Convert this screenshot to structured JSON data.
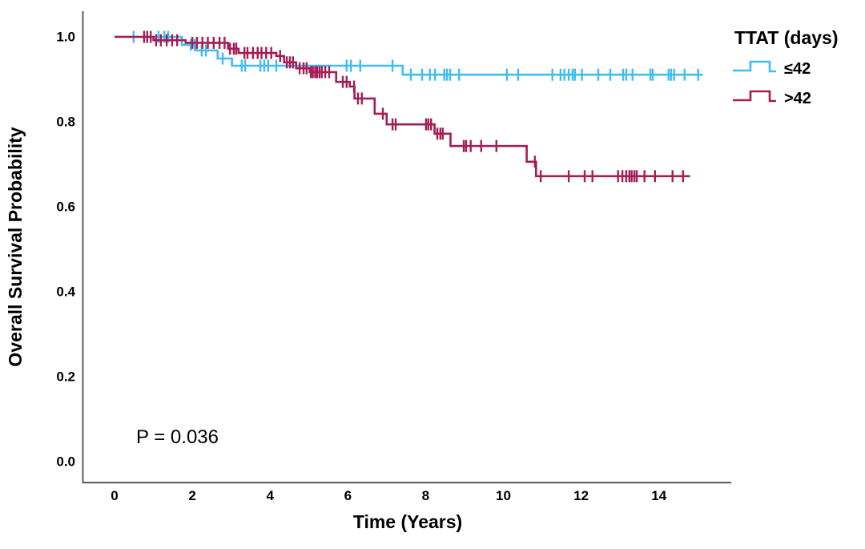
{
  "figure": {
    "background": "#ffffff",
    "axis_color": "#4c4c4c"
  },
  "legend": {
    "title": "TTAT (days)",
    "items": [
      {
        "id": "le42",
        "label": "≤42",
        "color": "#3fbdf2"
      },
      {
        "id": "gt42",
        "label": ">42",
        "color": "#a51d54"
      }
    ]
  },
  "chart_data": {
    "type": "line",
    "subtype": "kaplan_meier_step_survival",
    "title": "",
    "xlabel": "Time (Years)",
    "ylabel": "Overall Survival Probability",
    "x_ticks": [
      0,
      2,
      4,
      6,
      8,
      10,
      12,
      14
    ],
    "x_tick_labels": [
      "0",
      "2",
      "4",
      "6",
      "8",
      "10",
      "12",
      "14"
    ],
    "y_ticks": [
      0.0,
      0.2,
      0.4,
      0.6,
      0.8,
      1.0
    ],
    "y_tick_labels_top_down": [
      "1.0",
      "0.8",
      "0.6",
      "0.4",
      "0.2",
      "0.0"
    ],
    "xlim": [
      -0.8,
      15.9
    ],
    "ylim": [
      -0.05,
      1.06
    ],
    "grid": false,
    "legend_position": "top-right",
    "annotation": {
      "text": "P = 0.036",
      "x_year": 0.56,
      "y_prob": 0.04
    },
    "series": [
      {
        "id": "le42",
        "name": "≤42",
        "color": "#3fbdf2",
        "steps": [
          [
            0,
            1.0
          ],
          [
            1.73,
            0.981
          ],
          [
            2.1,
            0.968
          ],
          [
            2.65,
            0.949
          ],
          [
            3.02,
            0.932
          ],
          [
            7.41,
            0.911
          ],
          [
            15.13,
            0.911
          ]
        ],
        "censors": [
          [
            0.49,
            1.0
          ],
          [
            1.13,
            1.0
          ],
          [
            1.28,
            1.0
          ],
          [
            1.38,
            1.0
          ],
          [
            1.96,
            0.981
          ],
          [
            2.06,
            0.981
          ],
          [
            2.24,
            0.968
          ],
          [
            2.35,
            0.968
          ],
          [
            2.78,
            0.949
          ],
          [
            3.27,
            0.932
          ],
          [
            3.36,
            0.932
          ],
          [
            3.75,
            0.932
          ],
          [
            3.85,
            0.932
          ],
          [
            3.95,
            0.932
          ],
          [
            4.16,
            0.932
          ],
          [
            5.97,
            0.932
          ],
          [
            6.08,
            0.932
          ],
          [
            6.32,
            0.932
          ],
          [
            7.15,
            0.932
          ],
          [
            7.62,
            0.911
          ],
          [
            7.91,
            0.911
          ],
          [
            8.11,
            0.911
          ],
          [
            8.24,
            0.911
          ],
          [
            8.48,
            0.911
          ],
          [
            8.55,
            0.911
          ],
          [
            8.63,
            0.911
          ],
          [
            8.86,
            0.911
          ],
          [
            10.09,
            0.911
          ],
          [
            10.38,
            0.911
          ],
          [
            11.26,
            0.911
          ],
          [
            11.47,
            0.911
          ],
          [
            11.57,
            0.911
          ],
          [
            11.68,
            0.911
          ],
          [
            11.78,
            0.911
          ],
          [
            11.84,
            0.911
          ],
          [
            12.02,
            0.911
          ],
          [
            12.44,
            0.911
          ],
          [
            12.75,
            0.911
          ],
          [
            13.08,
            0.911
          ],
          [
            13.16,
            0.911
          ],
          [
            13.32,
            0.911
          ],
          [
            13.78,
            0.911
          ],
          [
            13.84,
            0.911
          ],
          [
            14.25,
            0.911
          ],
          [
            14.31,
            0.911
          ],
          [
            14.39,
            0.911
          ],
          [
            14.66,
            0.911
          ],
          [
            15.01,
            0.911
          ]
        ]
      },
      {
        "id": "gt42",
        "name": ">42",
        "color": "#a51d54",
        "steps": [
          [
            0,
            1.0
          ],
          [
            1.0,
            0.992
          ],
          [
            1.83,
            0.986
          ],
          [
            2.92,
            0.972
          ],
          [
            3.19,
            0.962
          ],
          [
            4.16,
            0.955
          ],
          [
            4.36,
            0.94
          ],
          [
            4.67,
            0.926
          ],
          [
            5.02,
            0.917
          ],
          [
            5.7,
            0.894
          ],
          [
            6.05,
            0.883
          ],
          [
            6.17,
            0.855
          ],
          [
            6.69,
            0.819
          ],
          [
            7.0,
            0.794
          ],
          [
            8.23,
            0.772
          ],
          [
            8.64,
            0.743
          ],
          [
            10.6,
            0.706
          ],
          [
            10.84,
            0.672
          ],
          [
            14.8,
            0.672
          ]
        ],
        "censors": [
          [
            0.76,
            1.0
          ],
          [
            0.84,
            1.0
          ],
          [
            0.93,
            1.0
          ],
          [
            1.07,
            0.992
          ],
          [
            1.19,
            0.992
          ],
          [
            1.34,
            0.992
          ],
          [
            1.48,
            0.992
          ],
          [
            1.61,
            0.992
          ],
          [
            2.0,
            0.986
          ],
          [
            2.12,
            0.986
          ],
          [
            2.26,
            0.986
          ],
          [
            2.4,
            0.986
          ],
          [
            2.55,
            0.986
          ],
          [
            2.7,
            0.986
          ],
          [
            2.83,
            0.986
          ],
          [
            2.97,
            0.972
          ],
          [
            3.07,
            0.972
          ],
          [
            3.13,
            0.972
          ],
          [
            3.34,
            0.962
          ],
          [
            3.42,
            0.962
          ],
          [
            3.56,
            0.962
          ],
          [
            3.68,
            0.962
          ],
          [
            3.78,
            0.962
          ],
          [
            3.9,
            0.962
          ],
          [
            4.03,
            0.962
          ],
          [
            4.26,
            0.955
          ],
          [
            4.43,
            0.94
          ],
          [
            4.51,
            0.94
          ],
          [
            4.59,
            0.94
          ],
          [
            4.76,
            0.926
          ],
          [
            4.86,
            0.926
          ],
          [
            4.94,
            0.926
          ],
          [
            5.05,
            0.917
          ],
          [
            5.1,
            0.917
          ],
          [
            5.16,
            0.917
          ],
          [
            5.21,
            0.917
          ],
          [
            5.27,
            0.917
          ],
          [
            5.33,
            0.917
          ],
          [
            5.42,
            0.917
          ],
          [
            5.52,
            0.917
          ],
          [
            5.87,
            0.894
          ],
          [
            5.97,
            0.894
          ],
          [
            6.16,
            0.883
          ],
          [
            6.26,
            0.855
          ],
          [
            6.36,
            0.855
          ],
          [
            6.9,
            0.819
          ],
          [
            7.15,
            0.794
          ],
          [
            7.23,
            0.794
          ],
          [
            8.01,
            0.794
          ],
          [
            8.07,
            0.794
          ],
          [
            8.14,
            0.794
          ],
          [
            8.3,
            0.772
          ],
          [
            8.38,
            0.772
          ],
          [
            8.44,
            0.772
          ],
          [
            8.98,
            0.743
          ],
          [
            9.04,
            0.743
          ],
          [
            9.16,
            0.743
          ],
          [
            9.43,
            0.743
          ],
          [
            9.82,
            0.743
          ],
          [
            10.81,
            0.706
          ],
          [
            10.96,
            0.672
          ],
          [
            11.68,
            0.672
          ],
          [
            12.09,
            0.672
          ],
          [
            12.29,
            0.672
          ],
          [
            12.95,
            0.672
          ],
          [
            13.06,
            0.672
          ],
          [
            13.16,
            0.672
          ],
          [
            13.24,
            0.672
          ],
          [
            13.3,
            0.672
          ],
          [
            13.37,
            0.672
          ],
          [
            13.43,
            0.672
          ],
          [
            13.63,
            0.672
          ],
          [
            13.9,
            0.672
          ],
          [
            14.35,
            0.672
          ],
          [
            14.62,
            0.672
          ]
        ]
      }
    ]
  }
}
